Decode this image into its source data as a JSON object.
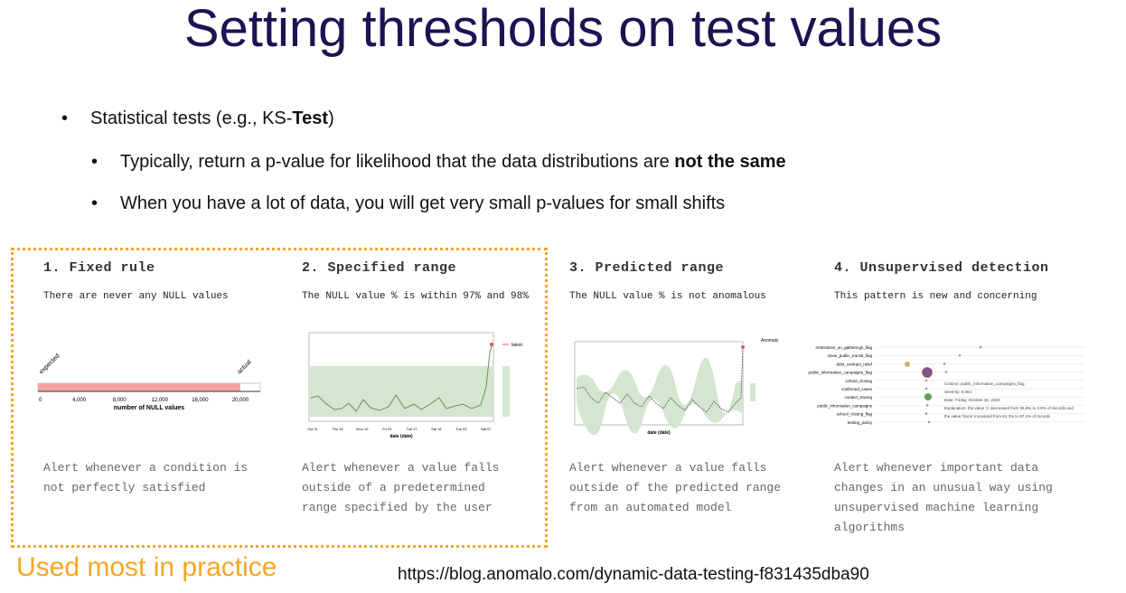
{
  "title": "Setting thresholds on test values",
  "bullets": [
    {
      "segments": [
        "Statistical tests (e.g., KS-",
        "Test",
        ")"
      ]
    },
    {
      "segments": [
        "Typically, return a p-value for likelihood that the data distributions are ",
        "not the same"
      ]
    },
    {
      "segments": [
        "When you have a lot of data, you will get very small p-values for small shifts"
      ]
    }
  ],
  "panels": [
    {
      "heading": "1. Fixed rule",
      "subtitle": "There are never any NULL values",
      "description": [
        "Alert whenever a condition is",
        "not perfectly satisfied"
      ],
      "chart": {
        "labels": [
          "expected",
          "actual"
        ],
        "ticks": [
          "0",
          "4,000",
          "8,000",
          "12,000",
          "16,000",
          "20,000"
        ],
        "axis_label": "number of NULL values"
      }
    },
    {
      "heading": "2. Specified range",
      "subtitle": "The NULL value % is within 97% and 98%",
      "description": [
        "Alert whenever a value falls",
        "outside of a predetermined",
        "range specified by the user"
      ],
      "chart": {
        "ticks": [
          "Oct 11",
          "Thu 15",
          "Mon 19",
          "Fri 23",
          "Tue 27",
          "Sat 31",
          "Tue 03",
          "Sat 07"
        ],
        "axis_label": "date (date)",
        "legend": "latest"
      }
    },
    {
      "heading": "3. Predicted range",
      "subtitle": "The NULL value % is not anomalous",
      "description": [
        "Alert whenever a value falls",
        "outside of the predicted range",
        "from an automated model"
      ],
      "chart": {
        "legend_title": "Anomaly",
        "axis_label": "date (date)"
      }
    },
    {
      "heading": "4. Unsupervised detection",
      "subtitle": "This pattern is new and concerning",
      "description": [
        "Alert whenever important data",
        "changes in an unusual way using",
        "unsupervised machine learning",
        "algorithms"
      ],
      "chart": {
        "rows": [
          "restrictions_on_gatherings_flag",
          "close_public_transit_flag",
          "debt_contract_relief",
          "public_information_campaigns_flag",
          "school_closing",
          "confirmed_cases",
          "contact_tracing",
          "public_information_campaigns",
          "school_closing_flag",
          "testing_policy"
        ],
        "details": [
          "Column: public_information_campaigns_flag",
          "Severity: 0.064",
          "Date: Friday, October 30, 2020",
          "Explanation: the value '1' decreased from 36.8% to 2.8% of records and",
          "the value 'None' increased from 61.3% to 97.1% of records"
        ]
      }
    }
  ],
  "footer": {
    "highlight": "Used most in practice",
    "link": "https://blog.anomalo.com/dynamic-data-testing-f831435dba90"
  }
}
